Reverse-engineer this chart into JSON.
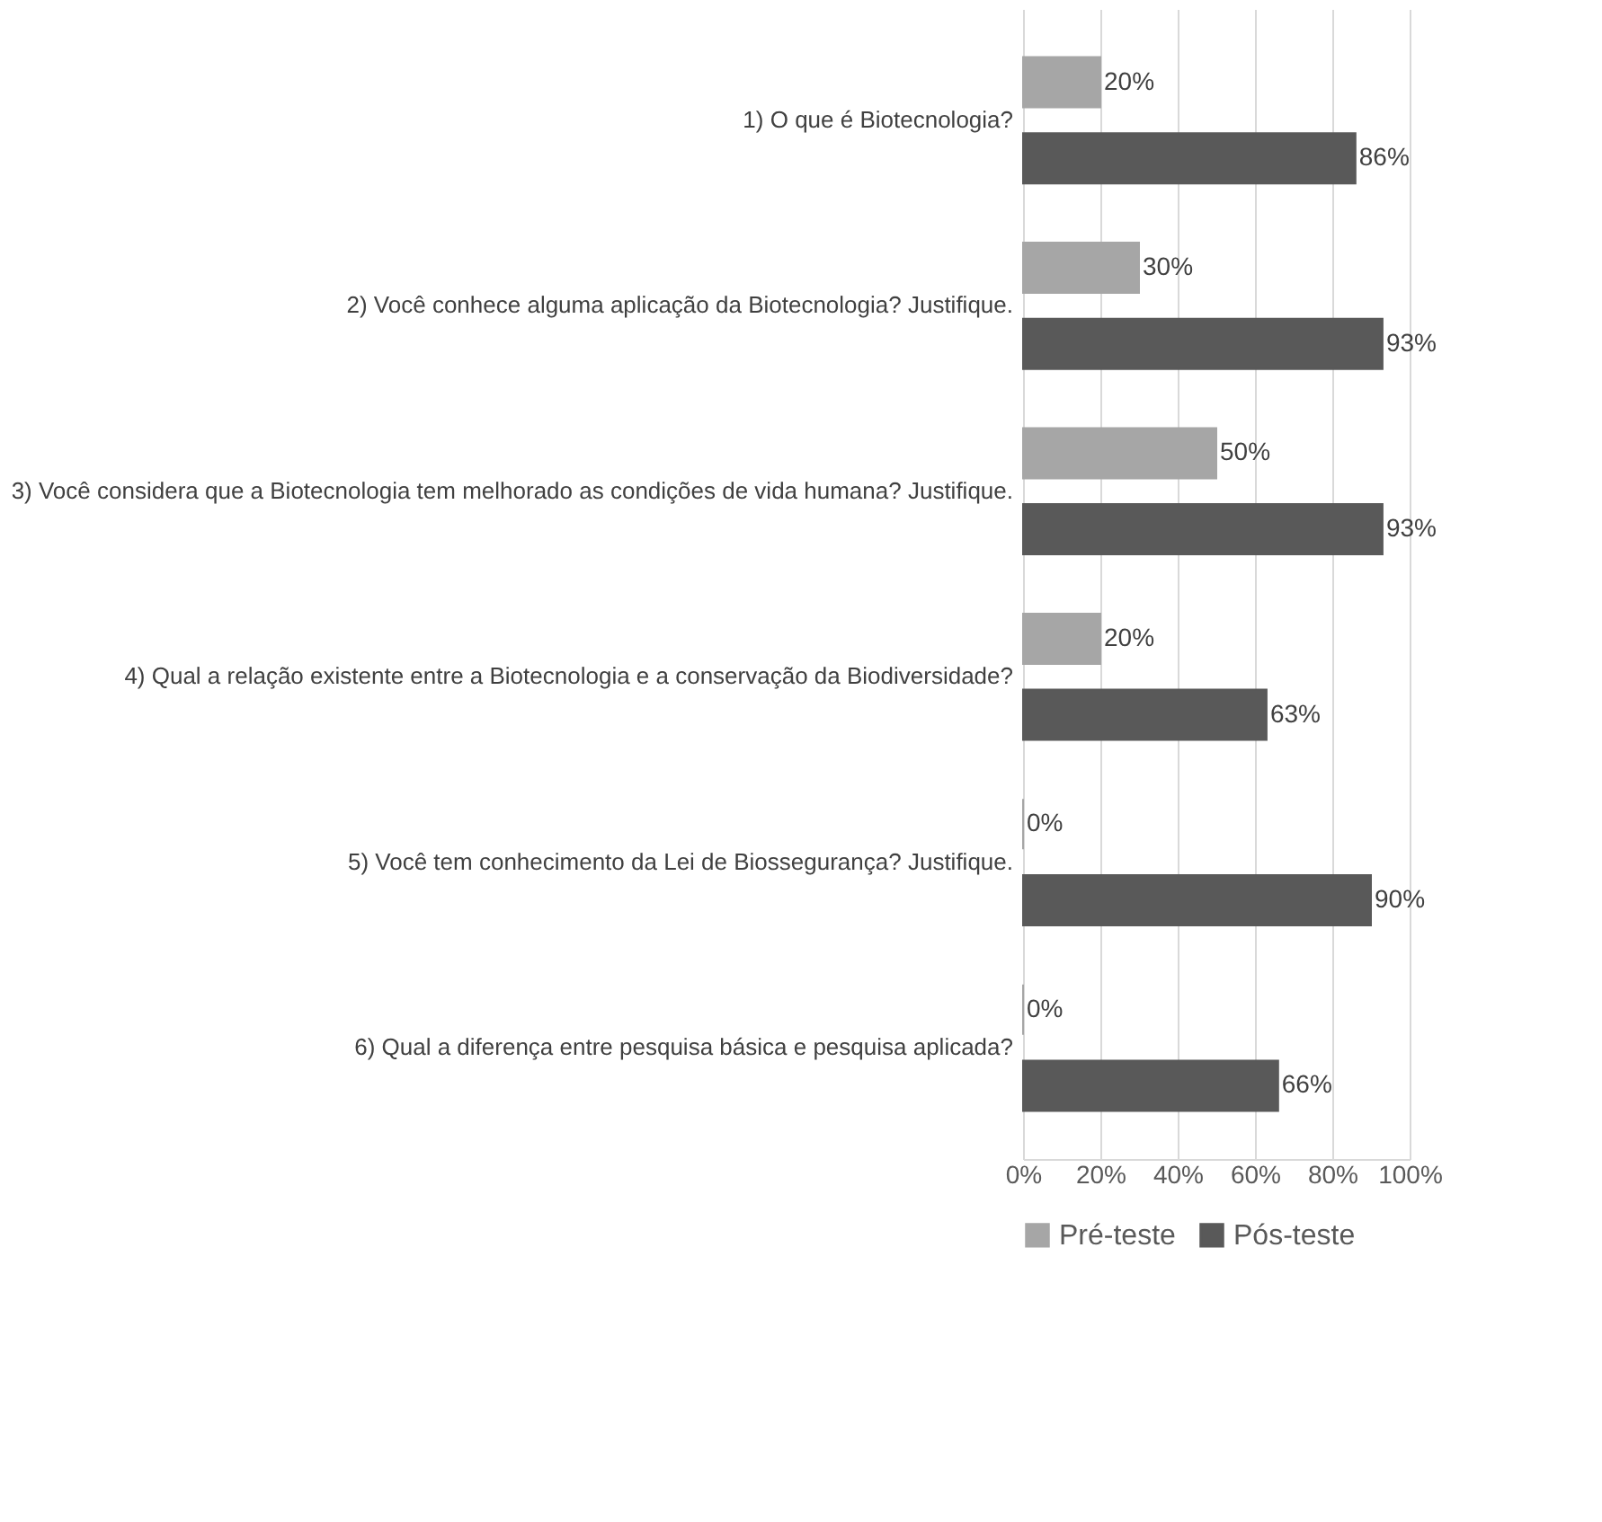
{
  "chart_data": {
    "type": "bar",
    "orientation": "horizontal",
    "categories": [
      "1) O que é Biotecnologia?",
      "2) Você conhece alguma aplicação da Biotecnologia? Justifique.",
      "3) Você considera que a Biotecnologia tem melhorado as condições de vida humana? Justifique.",
      "4) Qual a relação existente entre a Biotecnologia e a conservação da Biodiversidade?",
      "5) Você tem conhecimento da Lei de Biossegurança? Justifique.",
      "6) Qual a diferença entre pesquisa básica e pesquisa aplicada?"
    ],
    "series": [
      {
        "name": "Pré-teste",
        "color": "#a6a6a6",
        "values": [
          20,
          30,
          50,
          20,
          0,
          0
        ],
        "value_labels": [
          "20%",
          "30%",
          "50%",
          "20%",
          "0%",
          "0%"
        ]
      },
      {
        "name": "Pós-teste",
        "color": "#595959",
        "values": [
          86,
          93,
          93,
          63,
          90,
          66
        ],
        "value_labels": [
          "86%",
          "93%",
          "93%",
          "63%",
          "90%",
          "66%"
        ]
      }
    ],
    "xlim": [
      0,
      100
    ],
    "xticks": [
      {
        "value": 0,
        "label": "0%"
      },
      {
        "value": 20,
        "label": "20%"
      },
      {
        "value": 40,
        "label": "40%"
      },
      {
        "value": 60,
        "label": "60%"
      },
      {
        "value": 80,
        "label": "80%"
      },
      {
        "value": 100,
        "label": "100%"
      }
    ],
    "grid": "x",
    "legend": "bottom"
  }
}
